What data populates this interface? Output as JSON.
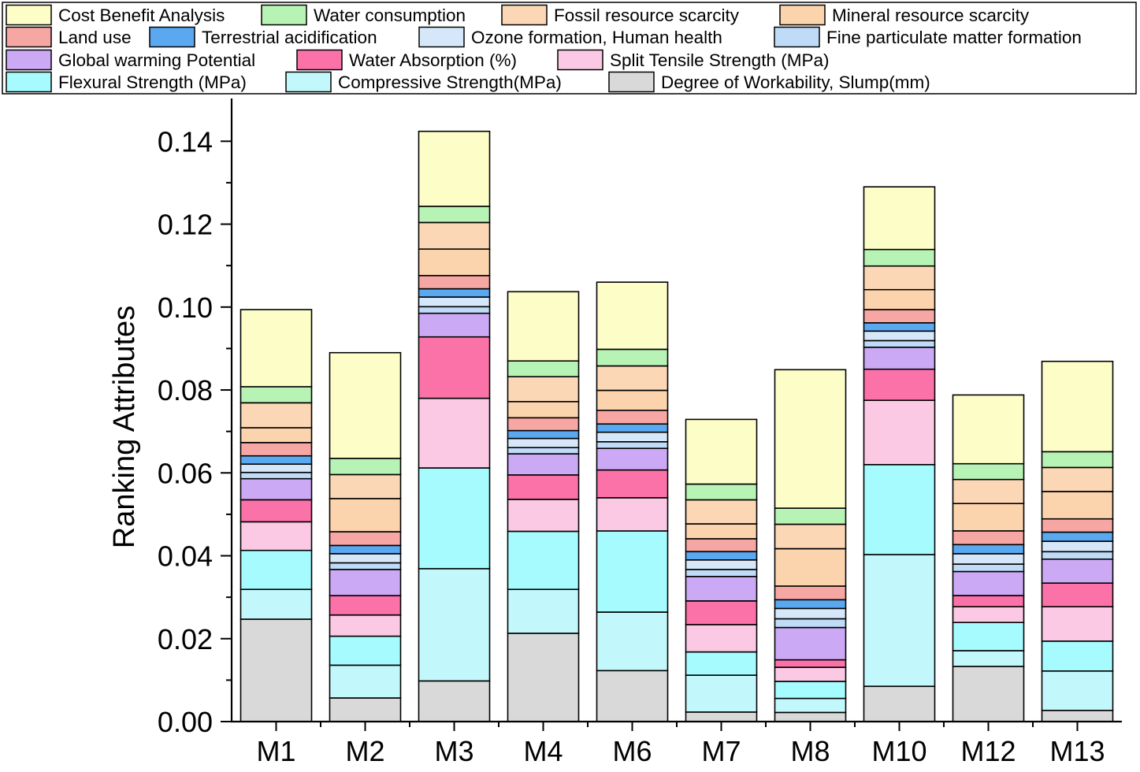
{
  "chart_data": {
    "type": "bar",
    "stacked": true,
    "title": "",
    "xlabel": "",
    "ylabel": "Ranking Attributes",
    "ylim": [
      0,
      0.15
    ],
    "yticks": [
      "0.00",
      "0.02",
      "0.04",
      "0.06",
      "0.08",
      "0.10",
      "0.12",
      "0.14"
    ],
    "legend_position": "top",
    "categories": [
      "M1",
      "M2",
      "M3",
      "M4",
      "M6",
      "M7",
      "M8",
      "M10",
      "M12",
      "M13"
    ],
    "series": [
      {
        "name": "Degree of Workability, Slump(mm)",
        "color": "#d9d9d9",
        "values": [
          0.0247,
          0.0057,
          0.0098,
          0.0213,
          0.0123,
          0.0023,
          0.0022,
          0.0085,
          0.0133,
          0.0027
        ]
      },
      {
        "name": "Compressive Strength(MPa)",
        "color": "#c2f7fb",
        "values": [
          0.0072,
          0.0079,
          0.0271,
          0.0106,
          0.0141,
          0.0089,
          0.0034,
          0.0318,
          0.0038,
          0.0095
        ]
      },
      {
        "name": "Flexural Strength (MPa)",
        "color": "#a6fbff",
        "values": [
          0.0094,
          0.007,
          0.0243,
          0.014,
          0.0196,
          0.0056,
          0.0041,
          0.0217,
          0.0068,
          0.0072
        ]
      },
      {
        "name": "Split Tensile Strength (MPa)",
        "color": "#fbc9e3",
        "values": [
          0.0069,
          0.0051,
          0.0168,
          0.0077,
          0.008,
          0.0066,
          0.0034,
          0.0155,
          0.0038,
          0.0083
        ]
      },
      {
        "name": "Water Absorption (%)",
        "color": "#fb72a8",
        "values": [
          0.0053,
          0.0047,
          0.0148,
          0.0059,
          0.0067,
          0.0057,
          0.0018,
          0.0075,
          0.0027,
          0.0057
        ]
      },
      {
        "name": "Global warming Potential",
        "color": "#cba9f5",
        "values": [
          0.0051,
          0.0063,
          0.0057,
          0.0051,
          0.0052,
          0.0059,
          0.0078,
          0.0053,
          0.0058,
          0.0058
        ]
      },
      {
        "name": "Fine particulate matter formation",
        "color": "#bfdbf7",
        "values": [
          0.0015,
          0.0016,
          0.0016,
          0.0015,
          0.0016,
          0.0017,
          0.0021,
          0.0016,
          0.0018,
          0.0018
        ]
      },
      {
        "name": "Ozone formation, Human health",
        "color": "#d6e7f9",
        "values": [
          0.002,
          0.0022,
          0.0023,
          0.0022,
          0.0023,
          0.0023,
          0.0025,
          0.0023,
          0.0025,
          0.0025
        ]
      },
      {
        "name": "Terrestrial acidification",
        "color": "#5aa8f0",
        "values": [
          0.002,
          0.002,
          0.002,
          0.0019,
          0.002,
          0.002,
          0.0021,
          0.002,
          0.0022,
          0.0022
        ]
      },
      {
        "name": "Land use",
        "color": "#f7a7a3",
        "values": [
          0.0032,
          0.0033,
          0.0032,
          0.0031,
          0.0033,
          0.0031,
          0.0033,
          0.0032,
          0.0033,
          0.0032
        ]
      },
      {
        "name": "Mineral resource scarcity",
        "color": "#fbd4ae",
        "values": [
          0.0036,
          0.008,
          0.0064,
          0.0039,
          0.0048,
          0.0036,
          0.009,
          0.0048,
          0.0066,
          0.0066
        ]
      },
      {
        "name": "Fossil resource scarcity",
        "color": "#fbd7b5",
        "values": [
          0.006,
          0.0058,
          0.0064,
          0.006,
          0.0059,
          0.0058,
          0.0059,
          0.0057,
          0.0058,
          0.0058
        ]
      },
      {
        "name": "Water consumption",
        "color": "#b6f3b4",
        "values": [
          0.0039,
          0.0039,
          0.0039,
          0.0038,
          0.004,
          0.0038,
          0.0039,
          0.004,
          0.0038,
          0.0038
        ]
      },
      {
        "name": "Cost Benefit Analysis",
        "color": "#fdfdc8",
        "values": [
          0.0186,
          0.0255,
          0.0181,
          0.0167,
          0.0162,
          0.0156,
          0.0334,
          0.0151,
          0.0166,
          0.0218
        ]
      }
    ],
    "legend_order": [
      "Cost Benefit Analysis",
      "Water consumption",
      "Fossil resource scarcity",
      "Mineral resource scarcity",
      "Land use",
      "Terrestrial acidification",
      "Ozone formation, Human health",
      "Fine particulate matter formation",
      "Global warming Potential",
      "Water Absorption (%)",
      "Split Tensile Strength (MPa)",
      "Flexural Strength (MPa)",
      "Compressive Strength(MPa)",
      "Degree of Workability, Slump(mm)"
    ]
  }
}
